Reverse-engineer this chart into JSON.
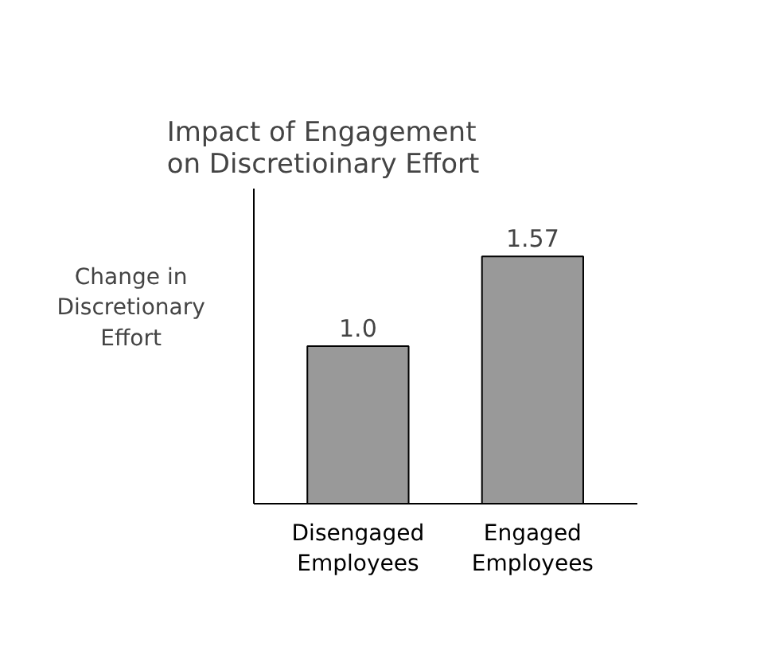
{
  "chart_data": {
    "type": "bar",
    "title": "Impact of Engagement\non Discretioinary Effort",
    "ylabel": "Change in\nDiscretionary\nEffort",
    "categories": [
      "Disengaged\nEmployees",
      "Engaged\nEmployees"
    ],
    "values": [
      1.0,
      1.57
    ],
    "value_labels": [
      "1.0",
      "1.57"
    ],
    "color": "#999999",
    "ylim": [
      0,
      2
    ],
    "tick_labels": "x",
    "grid": false
  }
}
